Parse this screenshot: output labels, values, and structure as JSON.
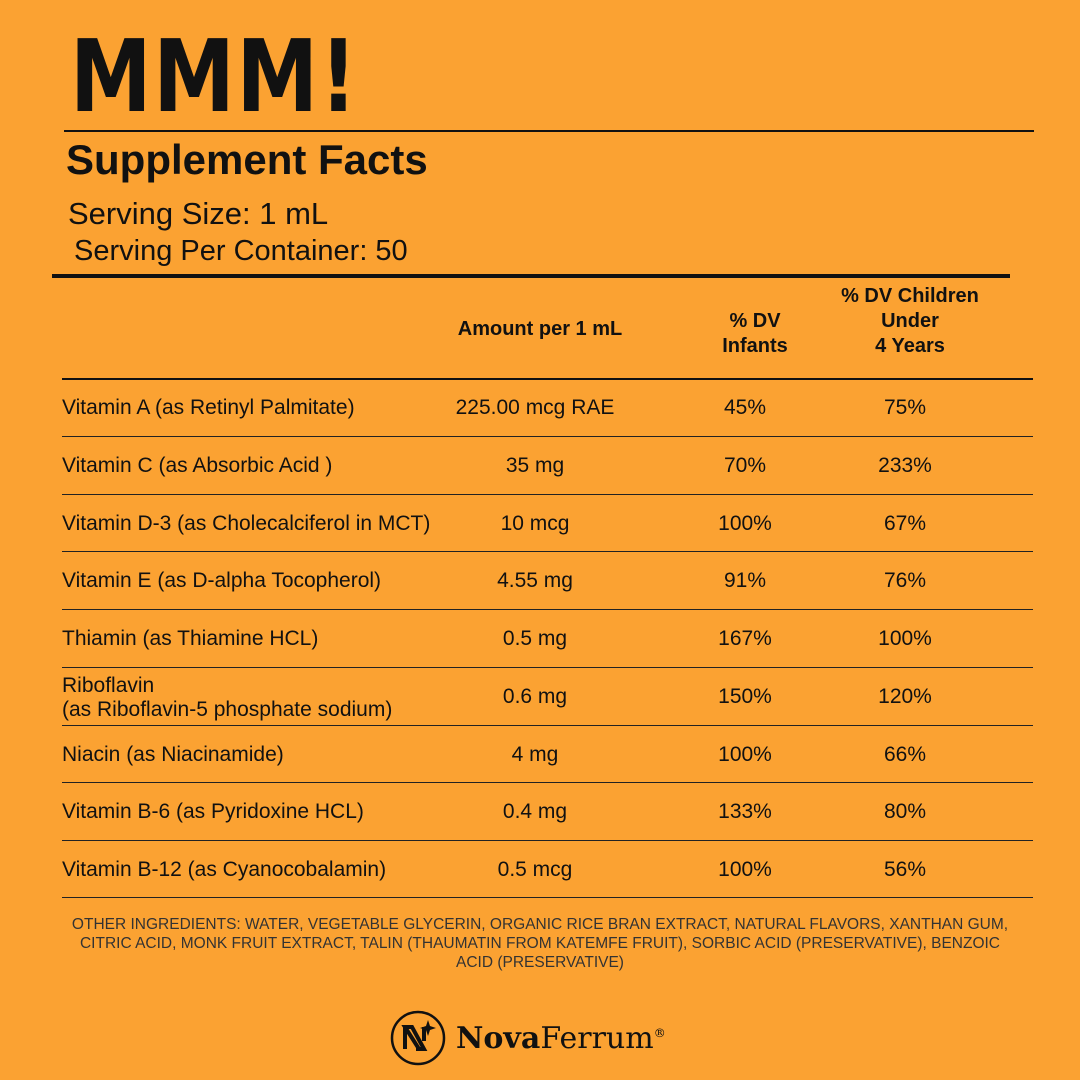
{
  "brand_title": "MMM!",
  "title": "Supplement Facts",
  "serving_size": "Serving Size: 1 mL",
  "servings_per_container": "Serving Per Container: 50",
  "headers": {
    "amount": "Amount per 1 mL",
    "infants": [
      "% DV",
      "Infants"
    ],
    "children": [
      "% DV Children",
      "Under",
      "4 Years"
    ]
  },
  "rows": [
    {
      "name": [
        "Vitamin A (as Retinyl Palmitate)"
      ],
      "amount": "225.00 mcg RAE",
      "infants": "45%",
      "children": "75%"
    },
    {
      "name": [
        "Vitamin C (as Absorbic Acid )"
      ],
      "amount": "35 mg",
      "infants": "70%",
      "children": "233%"
    },
    {
      "name": [
        "Vitamin D-3 (as Cholecalciferol in MCT)"
      ],
      "amount": "10 mcg",
      "infants": "100%",
      "children": "67%"
    },
    {
      "name": [
        "Vitamin E (as D-alpha Tocopherol)"
      ],
      "amount": "4.55 mg",
      "infants": "91%",
      "children": "76%"
    },
    {
      "name": [
        "Thiamin (as Thiamine HCL)"
      ],
      "amount": "0.5 mg",
      "infants": "167%",
      "children": "100%"
    },
    {
      "name": [
        "Riboflavin",
        "(as Riboflavin-5 phosphate sodium)"
      ],
      "amount": "0.6 mg",
      "infants": "150%",
      "children": "120%"
    },
    {
      "name": [
        "Niacin (as Niacinamide)"
      ],
      "amount": "4 mg",
      "infants": "100%",
      "children": "66%"
    },
    {
      "name": [
        "Vitamin B-6 (as Pyridoxine HCL)"
      ],
      "amount": "0.4 mg",
      "infants": "133%",
      "children": "80%"
    },
    {
      "name": [
        "Vitamin B-12 (as Cyanocobalamin)"
      ],
      "amount": "0.5 mcg",
      "infants": "100%",
      "children": "56%"
    }
  ],
  "other_ingredients": "OTHER INGREDIENTS: WATER, VEGETABLE GLYCERIN, ORGANIC RICE BRAN EXTRACT, NATURAL FLAVORS, XANTHAN GUM, CITRIC ACID, MONK FRUIT EXTRACT, TALIN (THAUMATIN FROM KATEMFE FRUIT), SORBIC ACID (PRESERVATIVE), BENZOIC ACID (PRESERVATIVE)",
  "logo": {
    "bold": "Nova",
    "regular": "Ferrum",
    "mark": "®"
  },
  "colors": {
    "background": "#fba232",
    "text": "#111111"
  }
}
